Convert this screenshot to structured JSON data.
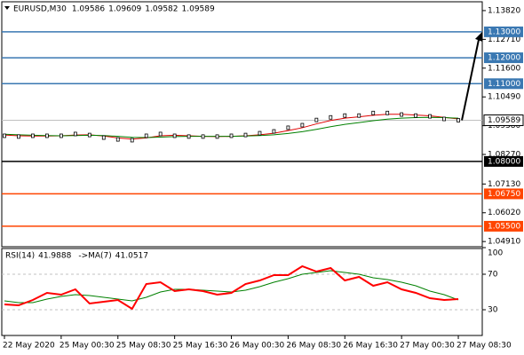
{
  "chart_data": [
    {
      "type": "candle",
      "title": "EURUSD,M30",
      "ohlc": [
        1.09586,
        1.09609,
        1.09582,
        1.09589
      ],
      "categories": [
        "22 May 2020",
        null,
        null,
        null,
        "25 May 00:30",
        null,
        null,
        null,
        "25 May 08:30",
        null,
        null,
        null,
        "25 May 16:30",
        null,
        null,
        null,
        "26 May 00:30",
        null,
        null,
        null,
        "26 May 08:30",
        null,
        null,
        null,
        "26 May 16:30",
        null,
        null,
        null,
        "27 May 00:30",
        null,
        null,
        null,
        "27 May 08:30"
      ],
      "series": [
        {
          "name": "close",
          "color": "#000000",
          "values": [
            1.0899,
            1.0896,
            1.0899,
            1.0899,
            1.0899,
            1.0906,
            1.0902,
            1.0892,
            1.0885,
            1.0882,
            1.0899,
            1.0906,
            1.0899,
            1.0896,
            1.0896,
            1.0896,
            1.0899,
            1.0902,
            1.0909,
            1.0916,
            1.093,
            1.094,
            1.096,
            1.097,
            1.0977,
            1.0977,
            1.0987,
            1.0987,
            1.0981,
            1.0977,
            1.0974,
            1.0964,
            1.09589
          ]
        },
        {
          "name": "ma-fast",
          "color": "#e00000",
          "values": [
            1.0902,
            1.0899,
            1.0898,
            1.0898,
            1.0899,
            1.0902,
            1.0903,
            1.0898,
            1.0891,
            1.0886,
            1.0891,
            1.0899,
            1.0901,
            1.0899,
            1.0897,
            1.0896,
            1.0897,
            1.0899,
            1.0903,
            1.0909,
            1.0919,
            1.093,
            1.0945,
            1.0958,
            1.0967,
            1.0972,
            1.0978,
            1.0982,
            1.0982,
            1.0979,
            1.0976,
            1.097,
            1.0964
          ]
        },
        {
          "name": "ma-slow",
          "color": "#008000",
          "values": [
            1.0905,
            1.0903,
            1.0901,
            1.09,
            1.0899,
            1.09,
            1.0901,
            1.09,
            1.0897,
            1.0893,
            1.0892,
            1.0894,
            1.0896,
            1.0897,
            1.0897,
            1.0897,
            1.0897,
            1.0898,
            1.09,
            1.0903,
            1.0908,
            1.0915,
            1.0924,
            1.0934,
            1.0943,
            1.095,
            1.0957,
            1.0963,
            1.0967,
            1.0969,
            1.097,
            1.0969,
            1.0967
          ]
        }
      ],
      "ylim": [
        1.0471,
        1.1416
      ],
      "yticks": [
        {
          "value": 1.1382,
          "label": "1.13820"
        },
        {
          "value": 1.1271,
          "label": "1.12710"
        },
        {
          "value": 1.116,
          "label": "1.11600"
        },
        {
          "value": 1.1049,
          "label": "1.10490"
        },
        {
          "value": 1.0938,
          "label": "1.09380"
        },
        {
          "value": 1.0827,
          "label": "1.08270"
        },
        {
          "value": 1.0713,
          "label": "1.07130"
        },
        {
          "value": 1.0602,
          "label": "1.06020"
        },
        {
          "value": 1.0491,
          "label": "1.04910"
        }
      ],
      "current": {
        "value": 1.09589,
        "label": "1.09589"
      },
      "levels": [
        {
          "value": 1.13,
          "label": "1.13000",
          "color": "#3a78b2"
        },
        {
          "value": 1.12,
          "label": "1.12000",
          "color": "#3a78b2"
        },
        {
          "value": 1.11,
          "label": "1.11000",
          "color": "#3a78b2"
        },
        {
          "value": 1.08,
          "label": "1.08000",
          "color": "#000000"
        },
        {
          "value": 1.0675,
          "label": "1.06750",
          "color": "#ff4500"
        },
        {
          "value": 1.055,
          "label": "1.05500",
          "color": "#ff4500"
        }
      ]
    },
    {
      "type": "line",
      "title": "RSI(14)",
      "value": 41.9888,
      "ma_title": "->MA(7)",
      "ma_value": 41.0517,
      "series": [
        {
          "name": "rsi",
          "color": "#ff0000",
          "values": [
            36,
            35,
            41,
            49,
            47,
            53,
            37,
            39,
            41,
            31,
            59,
            61,
            51,
            53,
            51,
            47,
            49,
            59,
            63,
            69,
            69,
            79,
            73,
            77,
            63,
            67,
            57,
            61,
            53,
            49,
            43,
            41,
            41.9888
          ]
        },
        {
          "name": "ma",
          "color": "#008000",
          "values": [
            40,
            38,
            38,
            42,
            45,
            47,
            46,
            44,
            42,
            40,
            44,
            50,
            53,
            53,
            52,
            51,
            50,
            52,
            56,
            61,
            65,
            70,
            72,
            74,
            72,
            70,
            66,
            64,
            61,
            57,
            51,
            47,
            41.0517
          ]
        }
      ],
      "ylim": [
        0,
        100
      ],
      "yticks": [
        30,
        70,
        100
      ],
      "grid": [
        30,
        70
      ]
    }
  ]
}
